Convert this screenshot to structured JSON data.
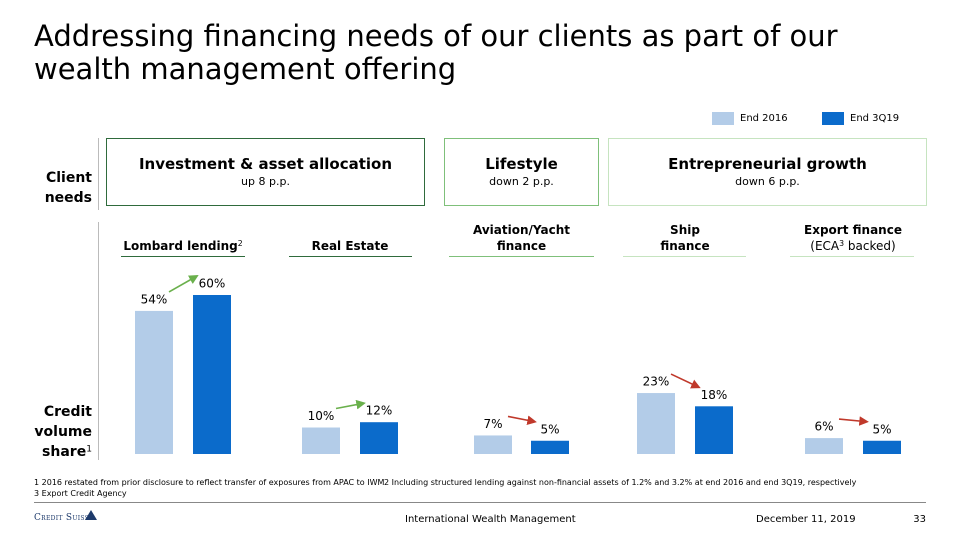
{
  "title": "Addressing financing needs of our clients as part of our wealth management offering",
  "row_labels": {
    "client_needs": "Client needs",
    "credit_volume": "Credit volume share",
    "credit_volume_note": "1"
  },
  "client_needs": [
    {
      "title": "Investment & asset allocation",
      "subtitle": "up 8 p.p."
    },
    {
      "title": "Lifestyle",
      "subtitle": "down 2 p.p."
    },
    {
      "title": "Entrepreneurial growth",
      "subtitle": "down 6 p.p."
    }
  ],
  "chart_data": {
    "type": "bar",
    "categories": [
      "Lombard lending",
      "Real Estate",
      "Aviation/Yacht finance",
      "Ship finance",
      "Export finance"
    ],
    "category_notes": [
      "2",
      null,
      null,
      null,
      null
    ],
    "category_sublabels": [
      null,
      null,
      null,
      null,
      {
        "text": "(ECA",
        "sup": "3",
        "rest": " backed)"
      }
    ],
    "series": [
      {
        "name": "End 2016",
        "color": "#b3cce8",
        "values": [
          54,
          10,
          7,
          23,
          6
        ],
        "value_labels": [
          "54%",
          "10%",
          "7%",
          "23%",
          "6%"
        ]
      },
      {
        "name": "End 3Q19",
        "color": "#0b6bcb",
        "values": [
          60,
          12,
          5,
          18,
          5
        ],
        "value_labels": [
          "60%",
          "12%",
          "5%",
          "18%",
          "5%"
        ]
      }
    ]
  },
  "footnotes": [
    "1 2016 restated from prior disclosure to reflect transfer of exposures from APAC to IWM",
    "2 Including structured lending against non-financial assets of 1.2% and 3.2% at end 2016 and end 3Q19, respectively",
    "3 Export Credit Agency"
  ],
  "footer": {
    "logo": "Credit Suisse",
    "center": "International Wealth Management",
    "date": "December 11, 2019",
    "page": "33"
  }
}
